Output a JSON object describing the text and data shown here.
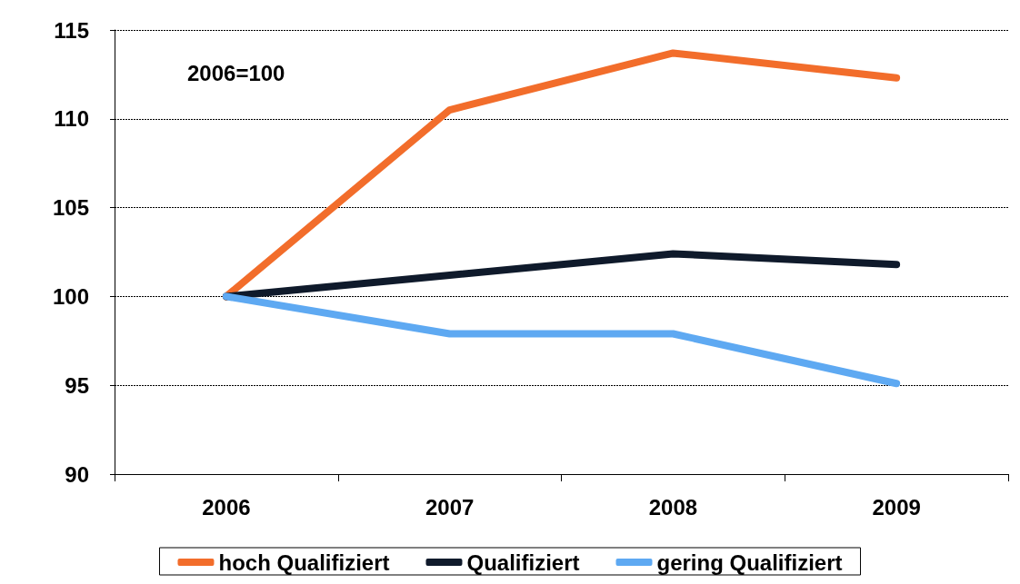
{
  "chart_data": {
    "type": "line",
    "categories": [
      "2006",
      "2007",
      "2008",
      "2009"
    ],
    "series": [
      {
        "name": "hoch Qualifiziert",
        "color": "#f26d2b",
        "values": [
          100,
          110.5,
          113.7,
          112.3
        ]
      },
      {
        "name": "Qualifiziert",
        "color": "#0f1a2b",
        "values": [
          100,
          101.2,
          102.4,
          101.8
        ]
      },
      {
        "name": "gering Qualifiziert",
        "color": "#5ea9f2",
        "values": [
          100,
          97.9,
          97.9,
          95.1
        ]
      }
    ],
    "ylim": [
      90,
      115
    ],
    "yticks": [
      90,
      95,
      100,
      105,
      110,
      115
    ],
    "grid": "y",
    "legend": "bottom",
    "marker": "none",
    "line_style": "solid",
    "annotations": [
      "2006=100"
    ]
  }
}
